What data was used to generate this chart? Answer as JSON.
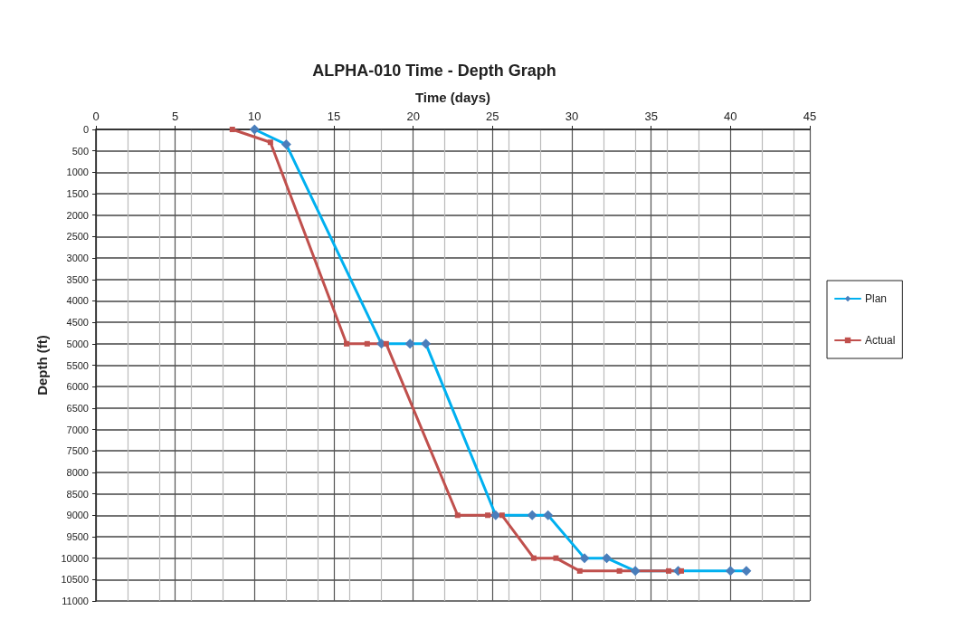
{
  "chart_data": {
    "type": "line",
    "title": "ALPHA-010 Time - Depth Graph",
    "xlabel": "Time (days)",
    "ylabel": "Depth (ft)",
    "xlim": [
      0,
      45
    ],
    "xticks": [
      0,
      5,
      10,
      15,
      20,
      25,
      30,
      35,
      40,
      45
    ],
    "ylim": [
      11000,
      0
    ],
    "yticks": [
      0,
      500,
      1000,
      1500,
      2000,
      2500,
      3000,
      3500,
      4000,
      4500,
      5000,
      5500,
      6000,
      6500,
      7000,
      7500,
      8000,
      8500,
      9000,
      9500,
      10000,
      10500,
      11000
    ],
    "grid": true,
    "legend": "right",
    "line_style": "solid",
    "series": [
      {
        "name": "Plan",
        "color": "#00b0f0",
        "marker": "diamond",
        "x": [
          10,
          12,
          18,
          19.8,
          20.8,
          25.2,
          27.5,
          28.5,
          30.8,
          32.2,
          34,
          36.7,
          40,
          41
        ],
        "values": [
          0,
          350,
          5000,
          5000,
          5000,
          9000,
          9000,
          9000,
          10000,
          10000,
          10300,
          10300,
          10300,
          10300
        ]
      },
      {
        "name": "Actual",
        "color": "#c0504d",
        "marker": "square",
        "x": [
          8.6,
          11,
          15.8,
          17.1,
          18.3,
          22.8,
          24.7,
          25.6,
          27.6,
          29,
          30.5,
          33,
          36.1,
          36.9
        ],
        "values": [
          0,
          300,
          5000,
          5000,
          5000,
          9000,
          9000,
          9000,
          10000,
          10000,
          10300,
          10300,
          10300,
          10300
        ]
      }
    ]
  }
}
